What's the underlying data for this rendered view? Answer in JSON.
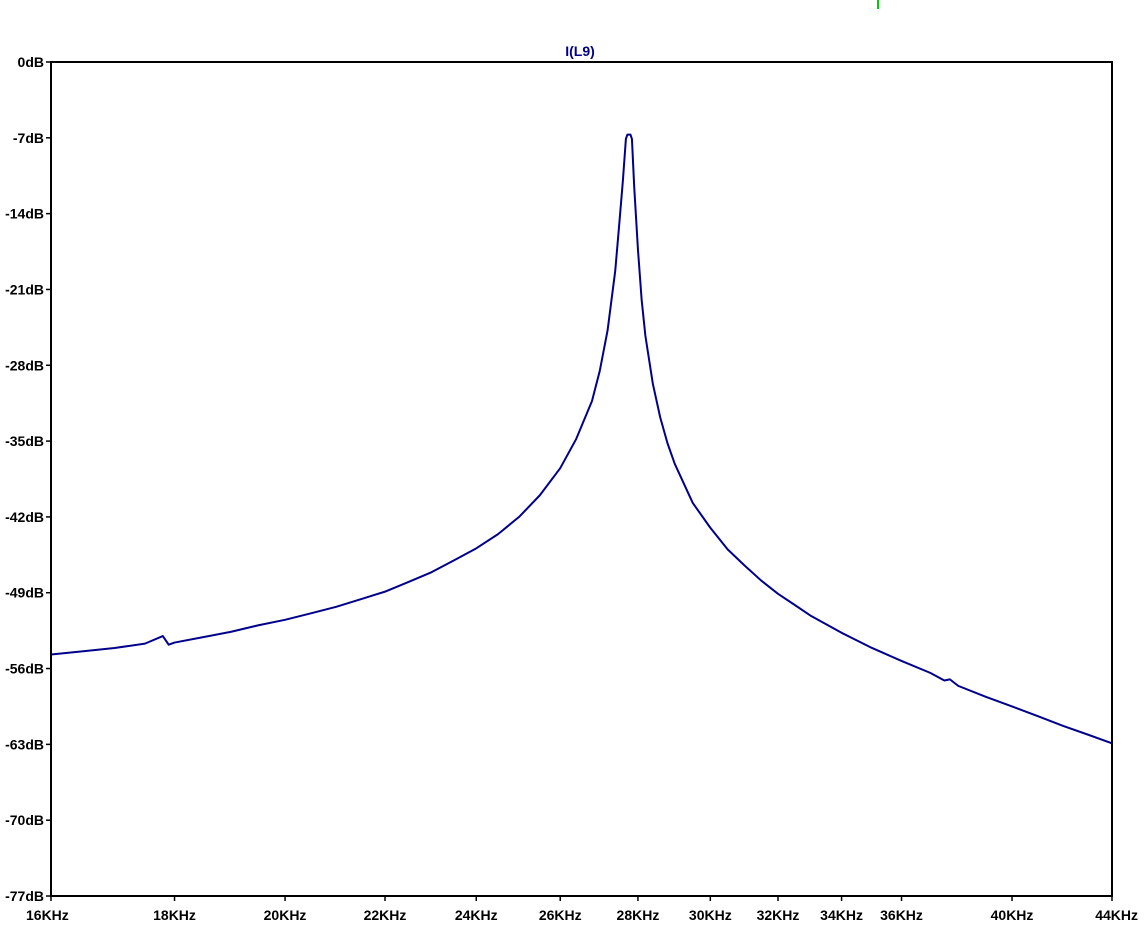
{
  "chart_data": {
    "type": "line",
    "title": "I(L9)",
    "xlabel": "",
    "ylabel": "",
    "x_scale": "log",
    "xlim": [
      16000,
      44000
    ],
    "ylim": [
      -77,
      0
    ],
    "grid": false,
    "colors": {
      "trace": "#00008b",
      "axis": "#000000",
      "cursor_marker": "#00cc00"
    },
    "x_ticks": [
      {
        "value": 16000,
        "label": "16KHz"
      },
      {
        "value": 18000,
        "label": "18KHz"
      },
      {
        "value": 20000,
        "label": "20KHz"
      },
      {
        "value": 22000,
        "label": "22KHz"
      },
      {
        "value": 24000,
        "label": "24KHz"
      },
      {
        "value": 26000,
        "label": "26KHz"
      },
      {
        "value": 28000,
        "label": "28KHz"
      },
      {
        "value": 30000,
        "label": "30KHz"
      },
      {
        "value": 32000,
        "label": "32KHz"
      },
      {
        "value": 34000,
        "label": "34KHz"
      },
      {
        "value": 36000,
        "label": "36KHz"
      },
      {
        "value": 40000,
        "label": "40KHz"
      },
      {
        "value": 44000,
        "label": "44KHz"
      }
    ],
    "y_ticks": [
      {
        "value": 0,
        "label": "0dB"
      },
      {
        "value": -7,
        "label": "-7dB"
      },
      {
        "value": -14,
        "label": "-14dB"
      },
      {
        "value": -21,
        "label": "-21dB"
      },
      {
        "value": -28,
        "label": "-28dB"
      },
      {
        "value": -35,
        "label": "-35dB"
      },
      {
        "value": -42,
        "label": "-42dB"
      },
      {
        "value": -49,
        "label": "-49dB"
      },
      {
        "value": -56,
        "label": "-56dB"
      },
      {
        "value": -63,
        "label": "-63dB"
      },
      {
        "value": -70,
        "label": "-70dB"
      },
      {
        "value": -77,
        "label": "-77dB"
      }
    ],
    "series": [
      {
        "name": "I(L9)",
        "color": "#00008b",
        "points": [
          [
            16000,
            -54.7
          ],
          [
            16500,
            -54.4
          ],
          [
            17000,
            -54.1
          ],
          [
            17500,
            -53.7
          ],
          [
            17800,
            -53.0
          ],
          [
            17900,
            -53.8
          ],
          [
            18000,
            -53.6
          ],
          [
            18500,
            -53.1
          ],
          [
            19000,
            -52.6
          ],
          [
            19500,
            -52.0
          ],
          [
            20000,
            -51.5
          ],
          [
            20500,
            -50.9
          ],
          [
            21000,
            -50.3
          ],
          [
            21500,
            -49.6
          ],
          [
            22000,
            -48.9
          ],
          [
            22500,
            -48.0
          ],
          [
            23000,
            -47.1
          ],
          [
            23500,
            -46.0
          ],
          [
            24000,
            -44.9
          ],
          [
            24500,
            -43.6
          ],
          [
            25000,
            -42.0
          ],
          [
            25500,
            -40.0
          ],
          [
            26000,
            -37.5
          ],
          [
            26400,
            -34.8
          ],
          [
            26800,
            -31.3
          ],
          [
            27000,
            -28.5
          ],
          [
            27200,
            -24.8
          ],
          [
            27400,
            -19.3
          ],
          [
            27500,
            -15.2
          ],
          [
            27600,
            -11.0
          ],
          [
            27680,
            -7.1
          ],
          [
            27720,
            -6.7
          ],
          [
            27800,
            -6.7
          ],
          [
            27840,
            -7.1
          ],
          [
            27900,
            -11.5
          ],
          [
            28000,
            -17.3
          ],
          [
            28100,
            -22.0
          ],
          [
            28200,
            -25.3
          ],
          [
            28400,
            -29.7
          ],
          [
            28600,
            -32.8
          ],
          [
            28800,
            -35.2
          ],
          [
            29000,
            -37.1
          ],
          [
            29500,
            -40.7
          ],
          [
            30000,
            -43.0
          ],
          [
            30500,
            -45.0
          ],
          [
            31000,
            -46.5
          ],
          [
            31500,
            -47.9
          ],
          [
            32000,
            -49.1
          ],
          [
            32500,
            -50.1
          ],
          [
            33000,
            -51.1
          ],
          [
            34000,
            -52.7
          ],
          [
            35000,
            -54.1
          ],
          [
            36000,
            -55.3
          ],
          [
            37000,
            -56.4
          ],
          [
            37500,
            -57.1
          ],
          [
            37700,
            -57.0
          ],
          [
            38000,
            -57.6
          ],
          [
            39000,
            -58.6
          ],
          [
            40000,
            -59.5
          ],
          [
            41000,
            -60.4
          ],
          [
            42000,
            -61.3
          ],
          [
            43000,
            -62.1
          ],
          [
            44000,
            -62.9
          ]
        ]
      }
    ]
  }
}
